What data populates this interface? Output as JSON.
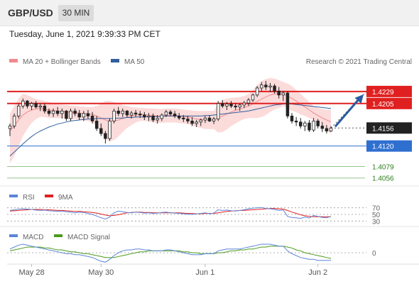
{
  "header": {
    "pair": "GBP/USD",
    "timeframe": "30 MIN"
  },
  "datetime": "Tuesday, June 1, 2021 9:39:33 PM CET",
  "legend": {
    "ma20": "MA 20 + Bollinger Bands",
    "ma50": "MA 50",
    "credit": "Research © 2021 Trading Central"
  },
  "colors": {
    "ma20": "#f08a8a",
    "ma50": "#2f5f9e",
    "resistance": "#e02020",
    "support": "#2f6fd0",
    "target": "#3a9a2a",
    "arrow": "#2a5aa0",
    "band": "#fbd2d2"
  },
  "chart_data": [
    {
      "type": "candlestick",
      "ylim": [
        1.404,
        1.427
      ],
      "candles": [
        [
          1.4155,
          1.4165,
          1.414,
          1.416
        ],
        [
          1.416,
          1.4185,
          1.4155,
          1.418
        ],
        [
          1.418,
          1.4205,
          1.4175,
          1.42
        ],
        [
          1.42,
          1.4215,
          1.4195,
          1.421
        ],
        [
          1.421,
          1.4212,
          1.4195,
          1.42
        ],
        [
          1.42,
          1.4208,
          1.4192,
          1.4205
        ],
        [
          1.4205,
          1.421,
          1.4195,
          1.4198
        ],
        [
          1.4198,
          1.4205,
          1.419,
          1.42
        ],
        [
          1.42,
          1.4205,
          1.4185,
          1.419
        ],
        [
          1.419,
          1.4195,
          1.418,
          1.4185
        ],
        [
          1.4185,
          1.4195,
          1.4178,
          1.419
        ],
        [
          1.419,
          1.4198,
          1.418,
          1.4185
        ],
        [
          1.4185,
          1.4195,
          1.4175,
          1.419
        ],
        [
          1.419,
          1.4192,
          1.417,
          1.4175
        ],
        [
          1.4175,
          1.4195,
          1.417,
          1.419
        ],
        [
          1.419,
          1.4195,
          1.418,
          1.4185
        ],
        [
          1.4185,
          1.4192,
          1.4172,
          1.4178
        ],
        [
          1.4178,
          1.419,
          1.417,
          1.4185
        ],
        [
          1.4185,
          1.4192,
          1.4175,
          1.418
        ],
        [
          1.418,
          1.4188,
          1.4165,
          1.417
        ],
        [
          1.417,
          1.418,
          1.415,
          1.4155
        ],
        [
          1.4155,
          1.4165,
          1.414,
          1.4145
        ],
        [
          1.4145,
          1.415,
          1.4125,
          1.4135
        ],
        [
          1.4135,
          1.4175,
          1.413,
          1.417
        ],
        [
          1.417,
          1.4195,
          1.4165,
          1.419
        ],
        [
          1.419,
          1.4198,
          1.418,
          1.4185
        ],
        [
          1.4185,
          1.4195,
          1.4178,
          1.419
        ],
        [
          1.419,
          1.4192,
          1.4178,
          1.4182
        ],
        [
          1.4182,
          1.419,
          1.4175,
          1.4186
        ],
        [
          1.4186,
          1.4192,
          1.4178,
          1.4184
        ],
        [
          1.4184,
          1.419,
          1.4176,
          1.4182
        ],
        [
          1.4182,
          1.4188,
          1.4172,
          1.4178
        ],
        [
          1.4178,
          1.4186,
          1.417,
          1.418
        ],
        [
          1.418,
          1.4185,
          1.4168,
          1.4172
        ],
        [
          1.4172,
          1.4182,
          1.4165,
          1.4175
        ],
        [
          1.4175,
          1.4185,
          1.417,
          1.4182
        ],
        [
          1.4182,
          1.4192,
          1.4178,
          1.4188
        ],
        [
          1.4188,
          1.4192,
          1.418,
          1.4184
        ],
        [
          1.4184,
          1.419,
          1.4176,
          1.418
        ],
        [
          1.418,
          1.4186,
          1.4172,
          1.4176
        ],
        [
          1.4176,
          1.4182,
          1.4168,
          1.4174
        ],
        [
          1.4174,
          1.418,
          1.4165,
          1.417
        ],
        [
          1.417,
          1.4178,
          1.416,
          1.4165
        ],
        [
          1.4165,
          1.4172,
          1.4158,
          1.4168
        ],
        [
          1.4168,
          1.4175,
          1.416,
          1.4172
        ],
        [
          1.4172,
          1.418,
          1.4166,
          1.4176
        ],
        [
          1.4176,
          1.4182,
          1.4168,
          1.417
        ],
        [
          1.417,
          1.4178,
          1.4164,
          1.4174
        ],
        [
          1.4174,
          1.421,
          1.417,
          1.4205
        ],
        [
          1.4205,
          1.4212,
          1.4196,
          1.42
        ],
        [
          1.42,
          1.4208,
          1.4192,
          1.4204
        ],
        [
          1.4204,
          1.421,
          1.4196,
          1.42
        ],
        [
          1.42,
          1.4206,
          1.4192,
          1.4198
        ],
        [
          1.4198,
          1.4205,
          1.419,
          1.4202
        ],
        [
          1.4202,
          1.421,
          1.4196,
          1.4206
        ],
        [
          1.4206,
          1.4216,
          1.42,
          1.4212
        ],
        [
          1.4212,
          1.4225,
          1.4208,
          1.4222
        ],
        [
          1.4222,
          1.424,
          1.4218,
          1.4236
        ],
        [
          1.4236,
          1.4248,
          1.423,
          1.4242
        ],
        [
          1.4242,
          1.425,
          1.4232,
          1.4238
        ],
        [
          1.4238,
          1.4246,
          1.4228,
          1.424
        ],
        [
          1.424,
          1.4244,
          1.4225,
          1.423
        ],
        [
          1.423,
          1.4238,
          1.4215,
          1.4222
        ],
        [
          1.4222,
          1.423,
          1.421,
          1.4226
        ],
        [
          1.4226,
          1.423,
          1.4175,
          1.418
        ],
        [
          1.418,
          1.4186,
          1.4165,
          1.417
        ],
        [
          1.417,
          1.4178,
          1.416,
          1.4168
        ],
        [
          1.4168,
          1.4176,
          1.4155,
          1.416
        ],
        [
          1.416,
          1.417,
          1.415,
          1.4166
        ],
        [
          1.4166,
          1.4172,
          1.4148,
          1.4152
        ],
        [
          1.4152,
          1.4176,
          1.4148,
          1.417
        ],
        [
          1.417,
          1.4174,
          1.4155,
          1.416
        ],
        [
          1.416,
          1.4168,
          1.4148,
          1.4155
        ],
        [
          1.4155,
          1.4162,
          1.4145,
          1.415
        ],
        [
          1.415,
          1.416,
          1.4148,
          1.4156
        ]
      ],
      "ma20": [
        1.415,
        1.416,
        1.4172,
        1.4182,
        1.4188,
        1.4192,
        1.4194,
        1.4195,
        1.4194,
        1.4192,
        1.4191,
        1.419,
        1.4189,
        1.4188,
        1.4187,
        1.4187,
        1.4186,
        1.4185,
        1.4184,
        1.4183,
        1.418,
        1.4176,
        1.4172,
        1.417,
        1.417,
        1.4172,
        1.4175,
        1.4178,
        1.418,
        1.4182,
        1.4183,
        1.4183,
        1.4182,
        1.4181,
        1.418,
        1.418,
        1.4181,
        1.4181,
        1.4181,
        1.418,
        1.4179,
        1.4178,
        1.4176,
        1.4174,
        1.4173,
        1.4172,
        1.4172,
        1.4172,
        1.4176,
        1.418,
        1.4184,
        1.4188,
        1.4191,
        1.4194,
        1.4197,
        1.42,
        1.4204,
        1.4209,
        1.4214,
        1.4218,
        1.4222,
        1.4224,
        1.4224,
        1.4224,
        1.422,
        1.4215,
        1.421,
        1.4204,
        1.4198,
        1.4192,
        1.4186,
        1.4181,
        1.4176,
        1.4172,
        1.4168
      ],
      "ma50": [
        1.41,
        1.4108,
        1.4116,
        1.4124,
        1.4132,
        1.4139,
        1.4145,
        1.415,
        1.4154,
        1.4158,
        1.4161,
        1.4164,
        1.4166,
        1.4168,
        1.417,
        1.4171,
        1.4172,
        1.4173,
        1.4174,
        1.4174,
        1.4175,
        1.4175,
        1.4175,
        1.4175,
        1.4175,
        1.4176,
        1.4176,
        1.4177,
        1.4177,
        1.4178,
        1.4178,
        1.4178,
        1.4179,
        1.4179,
        1.4179,
        1.4179,
        1.418,
        1.418,
        1.418,
        1.418,
        1.418,
        1.418,
        1.418,
        1.418,
        1.418,
        1.4181,
        1.4181,
        1.4182,
        1.4183,
        1.4184,
        1.4185,
        1.4186,
        1.4187,
        1.4188,
        1.4189,
        1.419,
        1.4192,
        1.4194,
        1.4196,
        1.4198,
        1.42,
        1.4202,
        1.4203,
        1.4204,
        1.4204,
        1.4204,
        1.4203,
        1.4202,
        1.4201,
        1.42,
        1.4199,
        1.4198,
        1.4197,
        1.4196,
        1.4195
      ],
      "band_upper": [
        1.4185,
        1.42,
        1.4215,
        1.4225,
        1.4222,
        1.4218,
        1.4214,
        1.4212,
        1.421,
        1.4208,
        1.4206,
        1.4204,
        1.4203,
        1.4202,
        1.4201,
        1.42,
        1.4199,
        1.4199,
        1.4198,
        1.4198,
        1.42,
        1.4205,
        1.421,
        1.421,
        1.4208,
        1.4205,
        1.4202,
        1.42,
        1.4198,
        1.4197,
        1.4196,
        1.4196,
        1.4195,
        1.4195,
        1.4194,
        1.4194,
        1.4195,
        1.4195,
        1.4195,
        1.4194,
        1.4193,
        1.4192,
        1.4191,
        1.419,
        1.419,
        1.419,
        1.419,
        1.419,
        1.4205,
        1.4212,
        1.4215,
        1.4216,
        1.4217,
        1.4218,
        1.422,
        1.4224,
        1.4232,
        1.4242,
        1.425,
        1.4254,
        1.4256,
        1.4255,
        1.4252,
        1.4248,
        1.4245,
        1.424,
        1.4232,
        1.4225,
        1.4216,
        1.4208,
        1.42,
        1.4196,
        1.4194,
        1.4192,
        1.4192
      ],
      "band_lower": [
        1.4085,
        1.41,
        1.412,
        1.414,
        1.4154,
        1.4166,
        1.4174,
        1.4178,
        1.4178,
        1.4176,
        1.4176,
        1.4176,
        1.4175,
        1.4174,
        1.4173,
        1.4174,
        1.4173,
        1.4171,
        1.417,
        1.4168,
        1.416,
        1.4147,
        1.4134,
        1.413,
        1.4132,
        1.4139,
        1.4148,
        1.4156,
        1.4162,
        1.4167,
        1.417,
        1.417,
        1.4169,
        1.4167,
        1.4166,
        1.4166,
        1.4167,
        1.4167,
        1.4167,
        1.4166,
        1.4165,
        1.4164,
        1.4161,
        1.4158,
        1.4156,
        1.4154,
        1.4154,
        1.4154,
        1.4147,
        1.4148,
        1.4153,
        1.416,
        1.4165,
        1.417,
        1.4174,
        1.4176,
        1.4176,
        1.4176,
        1.4178,
        1.4182,
        1.4188,
        1.4193,
        1.4196,
        1.42,
        1.4195,
        1.419,
        1.4188,
        1.4183,
        1.418,
        1.4176,
        1.4172,
        1.4166,
        1.4158,
        1.4152,
        1.4144
      ],
      "levels": [
        {
          "value": 1.4229,
          "label": "1.4229",
          "kind": "resistance"
        },
        {
          "value": 1.4205,
          "label": "1.4205",
          "kind": "resistance"
        },
        {
          "value": 1.4156,
          "label": "1.4156",
          "kind": "last"
        },
        {
          "value": 1.412,
          "label": "1.4120",
          "kind": "support"
        },
        {
          "value": 1.4079,
          "label": "1.4079",
          "kind": "target"
        },
        {
          "value": 1.4056,
          "label": "1.4056",
          "kind": "target"
        }
      ]
    },
    {
      "type": "line",
      "legend": [
        "RSI",
        "9MA"
      ],
      "ylim": [
        20,
        80
      ],
      "y_ticks": [
        "70",
        "50",
        "30"
      ],
      "rsi": [
        62,
        64,
        66,
        67,
        66,
        65,
        63,
        62,
        63,
        61,
        60,
        59,
        60,
        58,
        57,
        55,
        57,
        56,
        53,
        50,
        45,
        40,
        36,
        42,
        55,
        60,
        58,
        56,
        55,
        57,
        56,
        54,
        55,
        53,
        54,
        56,
        57,
        55,
        54,
        53,
        52,
        51,
        50,
        52,
        53,
        55,
        52,
        54,
        64,
        62,
        63,
        61,
        60,
        62,
        64,
        67,
        69,
        70,
        71,
        68,
        67,
        65,
        62,
        63,
        44,
        41,
        40,
        38,
        42,
        39,
        47,
        44,
        41,
        40,
        44
      ],
      "ma9": [
        60,
        61,
        62,
        63,
        64,
        65,
        65,
        65,
        64,
        64,
        63,
        62,
        62,
        61,
        60,
        59,
        59,
        58,
        57,
        56,
        54,
        51,
        48,
        46,
        47,
        49,
        52,
        55,
        56,
        57,
        57,
        56,
        56,
        55,
        55,
        55,
        55,
        55,
        55,
        55,
        54,
        53,
        53,
        52,
        52,
        53,
        53,
        53,
        55,
        57,
        59,
        60,
        61,
        62,
        62,
        63,
        64,
        65,
        66,
        67,
        68,
        68,
        67,
        66,
        62,
        57,
        53,
        49,
        46,
        44,
        43,
        43,
        43,
        43,
        43
      ]
    },
    {
      "type": "line",
      "legend": [
        "MACD",
        "MACD Signal"
      ],
      "ylim": [
        -0.0012,
        0.0012
      ],
      "y_ticks": [
        "0"
      ],
      "macd": [
        0.0004,
        0.0006,
        0.0008,
        0.0009,
        0.0008,
        0.0007,
        0.0006,
        0.0005,
        0.0004,
        0.0003,
        0.0002,
        0.0001,
        0.0,
        -0.0001,
        -0.0001,
        -0.0002,
        -0.0002,
        -0.0003,
        -0.0004,
        -0.0005,
        -0.0007,
        -0.0009,
        -0.001,
        -0.0007,
        -0.0003,
        0.0,
        0.0002,
        0.0003,
        0.0003,
        0.0004,
        0.0004,
        0.0003,
        0.0003,
        0.0002,
        0.0002,
        0.0002,
        0.0003,
        0.0003,
        0.0002,
        0.0001,
        0.0,
        -0.0001,
        -0.0002,
        -0.0002,
        -0.0002,
        -0.0001,
        -0.0001,
        -0.0001,
        0.0002,
        0.0003,
        0.0004,
        0.0004,
        0.0004,
        0.0004,
        0.0005,
        0.0006,
        0.0007,
        0.0008,
        0.0009,
        0.0009,
        0.0009,
        0.0008,
        0.0007,
        0.0007,
        0.0002,
        -0.0001,
        -0.0003,
        -0.0005,
        -0.0006,
        -0.0007,
        -0.0007,
        -0.0008,
        -0.0008,
        -0.0008,
        -0.0008
      ],
      "signal": [
        0.0002,
        0.0003,
        0.0004,
        0.0005,
        0.0006,
        0.0006,
        0.0006,
        0.0006,
        0.0005,
        0.0005,
        0.0004,
        0.0003,
        0.0003,
        0.0002,
        0.0001,
        0.0001,
        0.0,
        -0.0001,
        -0.0001,
        -0.0002,
        -0.0003,
        -0.0004,
        -0.0005,
        -0.0005,
        -0.0005,
        -0.0004,
        -0.0003,
        -0.0002,
        -0.0001,
        0.0,
        0.0001,
        0.0001,
        0.0002,
        0.0002,
        0.0002,
        0.0002,
        0.0002,
        0.0002,
        0.0002,
        0.0002,
        0.0001,
        0.0001,
        0.0,
        0.0,
        -0.0001,
        -0.0001,
        -0.0001,
        -0.0001,
        0.0,
        0.0,
        0.0001,
        0.0002,
        0.0002,
        0.0003,
        0.0003,
        0.0004,
        0.0004,
        0.0005,
        0.0006,
        0.0006,
        0.0007,
        0.0007,
        0.0007,
        0.0007,
        0.0006,
        0.0005,
        0.0003,
        0.0002,
        0.0,
        -0.0001,
        -0.0002,
        -0.0003,
        -0.0004,
        -0.0005,
        -0.0006
      ]
    }
  ],
  "x_labels": [
    {
      "label": "May 28",
      "index": 5
    },
    {
      "label": "May 30",
      "index": 21
    },
    {
      "label": "Jun 1",
      "index": 45
    },
    {
      "label": "Jun 2",
      "index": 71
    }
  ]
}
